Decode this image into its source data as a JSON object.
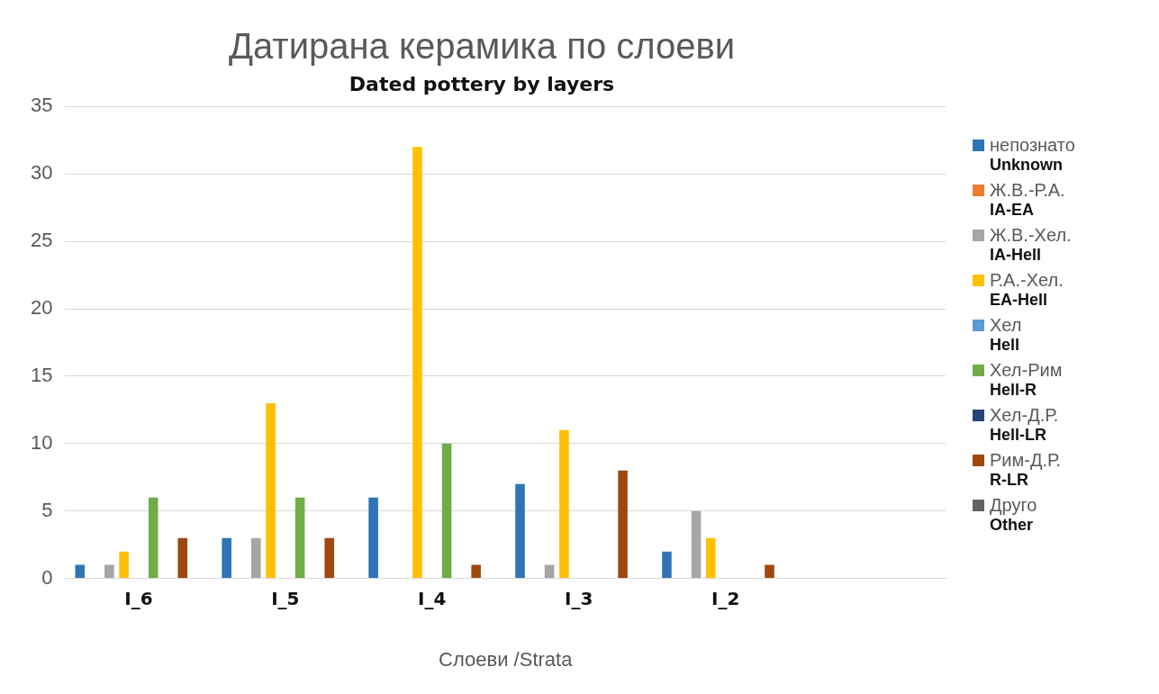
{
  "chart_data": {
    "type": "bar",
    "title": "Датирана керамика по слоеви",
    "subtitle": "Dated pottery by layers",
    "xlabel": "Слоеви /Strata",
    "categories": [
      "I_6",
      "I_5",
      "I_4",
      "I_3",
      "I_2",
      null
    ],
    "series": [
      {
        "name": "непознато\nUnknown",
        "color": "#2e75b6",
        "values": [
          1,
          3,
          6,
          7,
          2,
          null
        ]
      },
      {
        "name": "Ж.В.-Р.А.\nIA-EA",
        "color": "#ed7d31",
        "values": [
          null,
          null,
          null,
          null,
          null,
          null
        ]
      },
      {
        "name": "Ж.В.-Хел.\nIA-Hell",
        "color": "#a5a5a5",
        "values": [
          1,
          3,
          null,
          1,
          5,
          null
        ]
      },
      {
        "name": "Р.А.-Хел.\nEA-Hell",
        "color": "#ffc000",
        "values": [
          2,
          13,
          32,
          11,
          3,
          null
        ]
      },
      {
        "name": "Хел\nHell",
        "color": "#5b9bd5",
        "values": [
          null,
          null,
          null,
          null,
          null,
          null
        ]
      },
      {
        "name": "Хел-Рим\nHell-R",
        "color": "#70ad47",
        "values": [
          6,
          6,
          10,
          null,
          null,
          null
        ]
      },
      {
        "name": "Хел-Д.Р.\nHell-LR",
        "color": "#264478",
        "values": [
          null,
          null,
          null,
          null,
          null,
          null
        ]
      },
      {
        "name": "Рим-Д.Р.\nR-LR",
        "color": "#9e480e",
        "values": [
          3,
          3,
          1,
          8,
          1,
          null
        ]
      },
      {
        "name": "Друго\nOther",
        "color": "#636363",
        "values": [
          null,
          null,
          null,
          null,
          null,
          null
        ]
      }
    ],
    "ylim": [
      0,
      35
    ],
    "yticks": [
      0,
      5,
      10,
      15,
      20,
      25,
      30,
      35
    ],
    "grid": "y",
    "legend": "right"
  }
}
